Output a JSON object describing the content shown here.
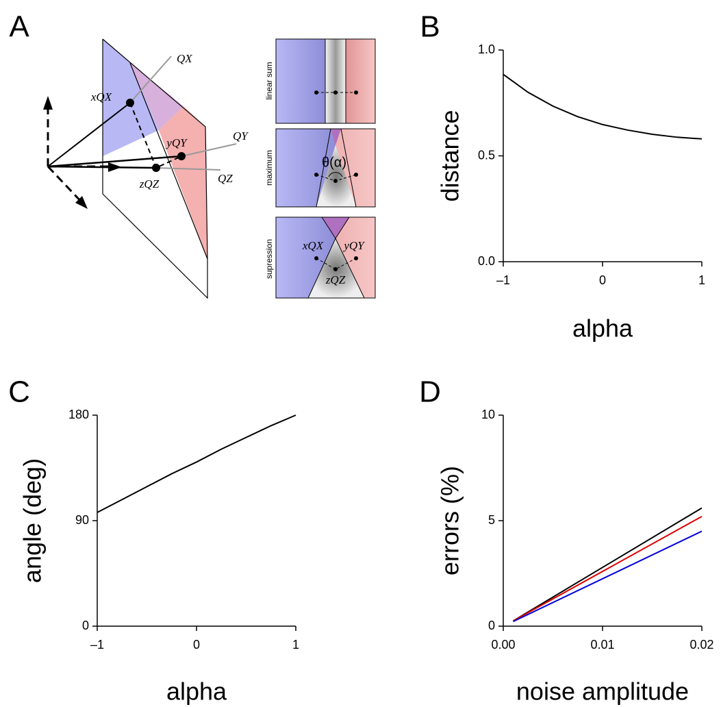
{
  "diagram": {
    "panel_label": "A",
    "vector_labels": [
      "QX",
      "QY",
      "QZ"
    ],
    "point_labels": [
      "xQX",
      "yQY",
      "zQZ"
    ],
    "insets": [
      "linear sum",
      "maximum",
      "supression"
    ],
    "angle_label": "θ(α)",
    "inset_point_labels": [
      "xQX",
      "yQY",
      "zQZ"
    ]
  },
  "chart_data": [
    {
      "type": "line",
      "panel_label": "B",
      "xlabel": "alpha",
      "ylabel": "distance",
      "x": [
        -1,
        -0.75,
        -0.5,
        -0.25,
        0,
        0.25,
        0.5,
        0.75,
        1
      ],
      "series": [
        {
          "color": "#000000",
          "values": [
            0.885,
            0.8,
            0.735,
            0.685,
            0.648,
            0.622,
            0.602,
            0.588,
            0.58
          ]
        }
      ],
      "xlim": [
        -1,
        1
      ],
      "xticks": [
        {
          "value": -1,
          "label": "–1"
        },
        0,
        1
      ],
      "ylim": [
        0,
        1
      ],
      "yticks": [
        {
          "value": 0,
          "label": "0.0"
        },
        0.5,
        {
          "value": 1,
          "label": "1.0"
        }
      ]
    },
    {
      "type": "line",
      "panel_label": "C",
      "xlabel": "alpha",
      "ylabel": "angle (deg)",
      "x": [
        -1,
        -0.75,
        -0.5,
        -0.25,
        0,
        0.25,
        0.5,
        0.75,
        1
      ],
      "series": [
        {
          "color": "#000000",
          "values": [
            97,
            108,
            119,
            130,
            140,
            151,
            161,
            171,
            180
          ]
        }
      ],
      "xlim": [
        -1,
        1
      ],
      "xticks": [
        {
          "value": -1,
          "label": "–1"
        },
        0,
        1
      ],
      "ylim": [
        0,
        180
      ],
      "yticks": [
        0,
        90,
        180
      ]
    },
    {
      "type": "line",
      "panel_label": "D",
      "xlabel": "noise amplitude",
      "ylabel": "errors (%)",
      "x": [
        0.001,
        0.02
      ],
      "series": [
        {
          "color": "#000000",
          "values": [
            0.25,
            5.6
          ]
        },
        {
          "color": "#e00000",
          "values": [
            0.25,
            5.2
          ]
        },
        {
          "color": "#0000e0",
          "values": [
            0.22,
            4.5
          ]
        }
      ],
      "xlim": [
        0,
        0.02
      ],
      "xticks": [
        {
          "value": 0,
          "label": "0.00"
        },
        0.01,
        0.02
      ],
      "ylim": [
        0,
        10
      ],
      "yticks": [
        0,
        5,
        10
      ]
    }
  ]
}
